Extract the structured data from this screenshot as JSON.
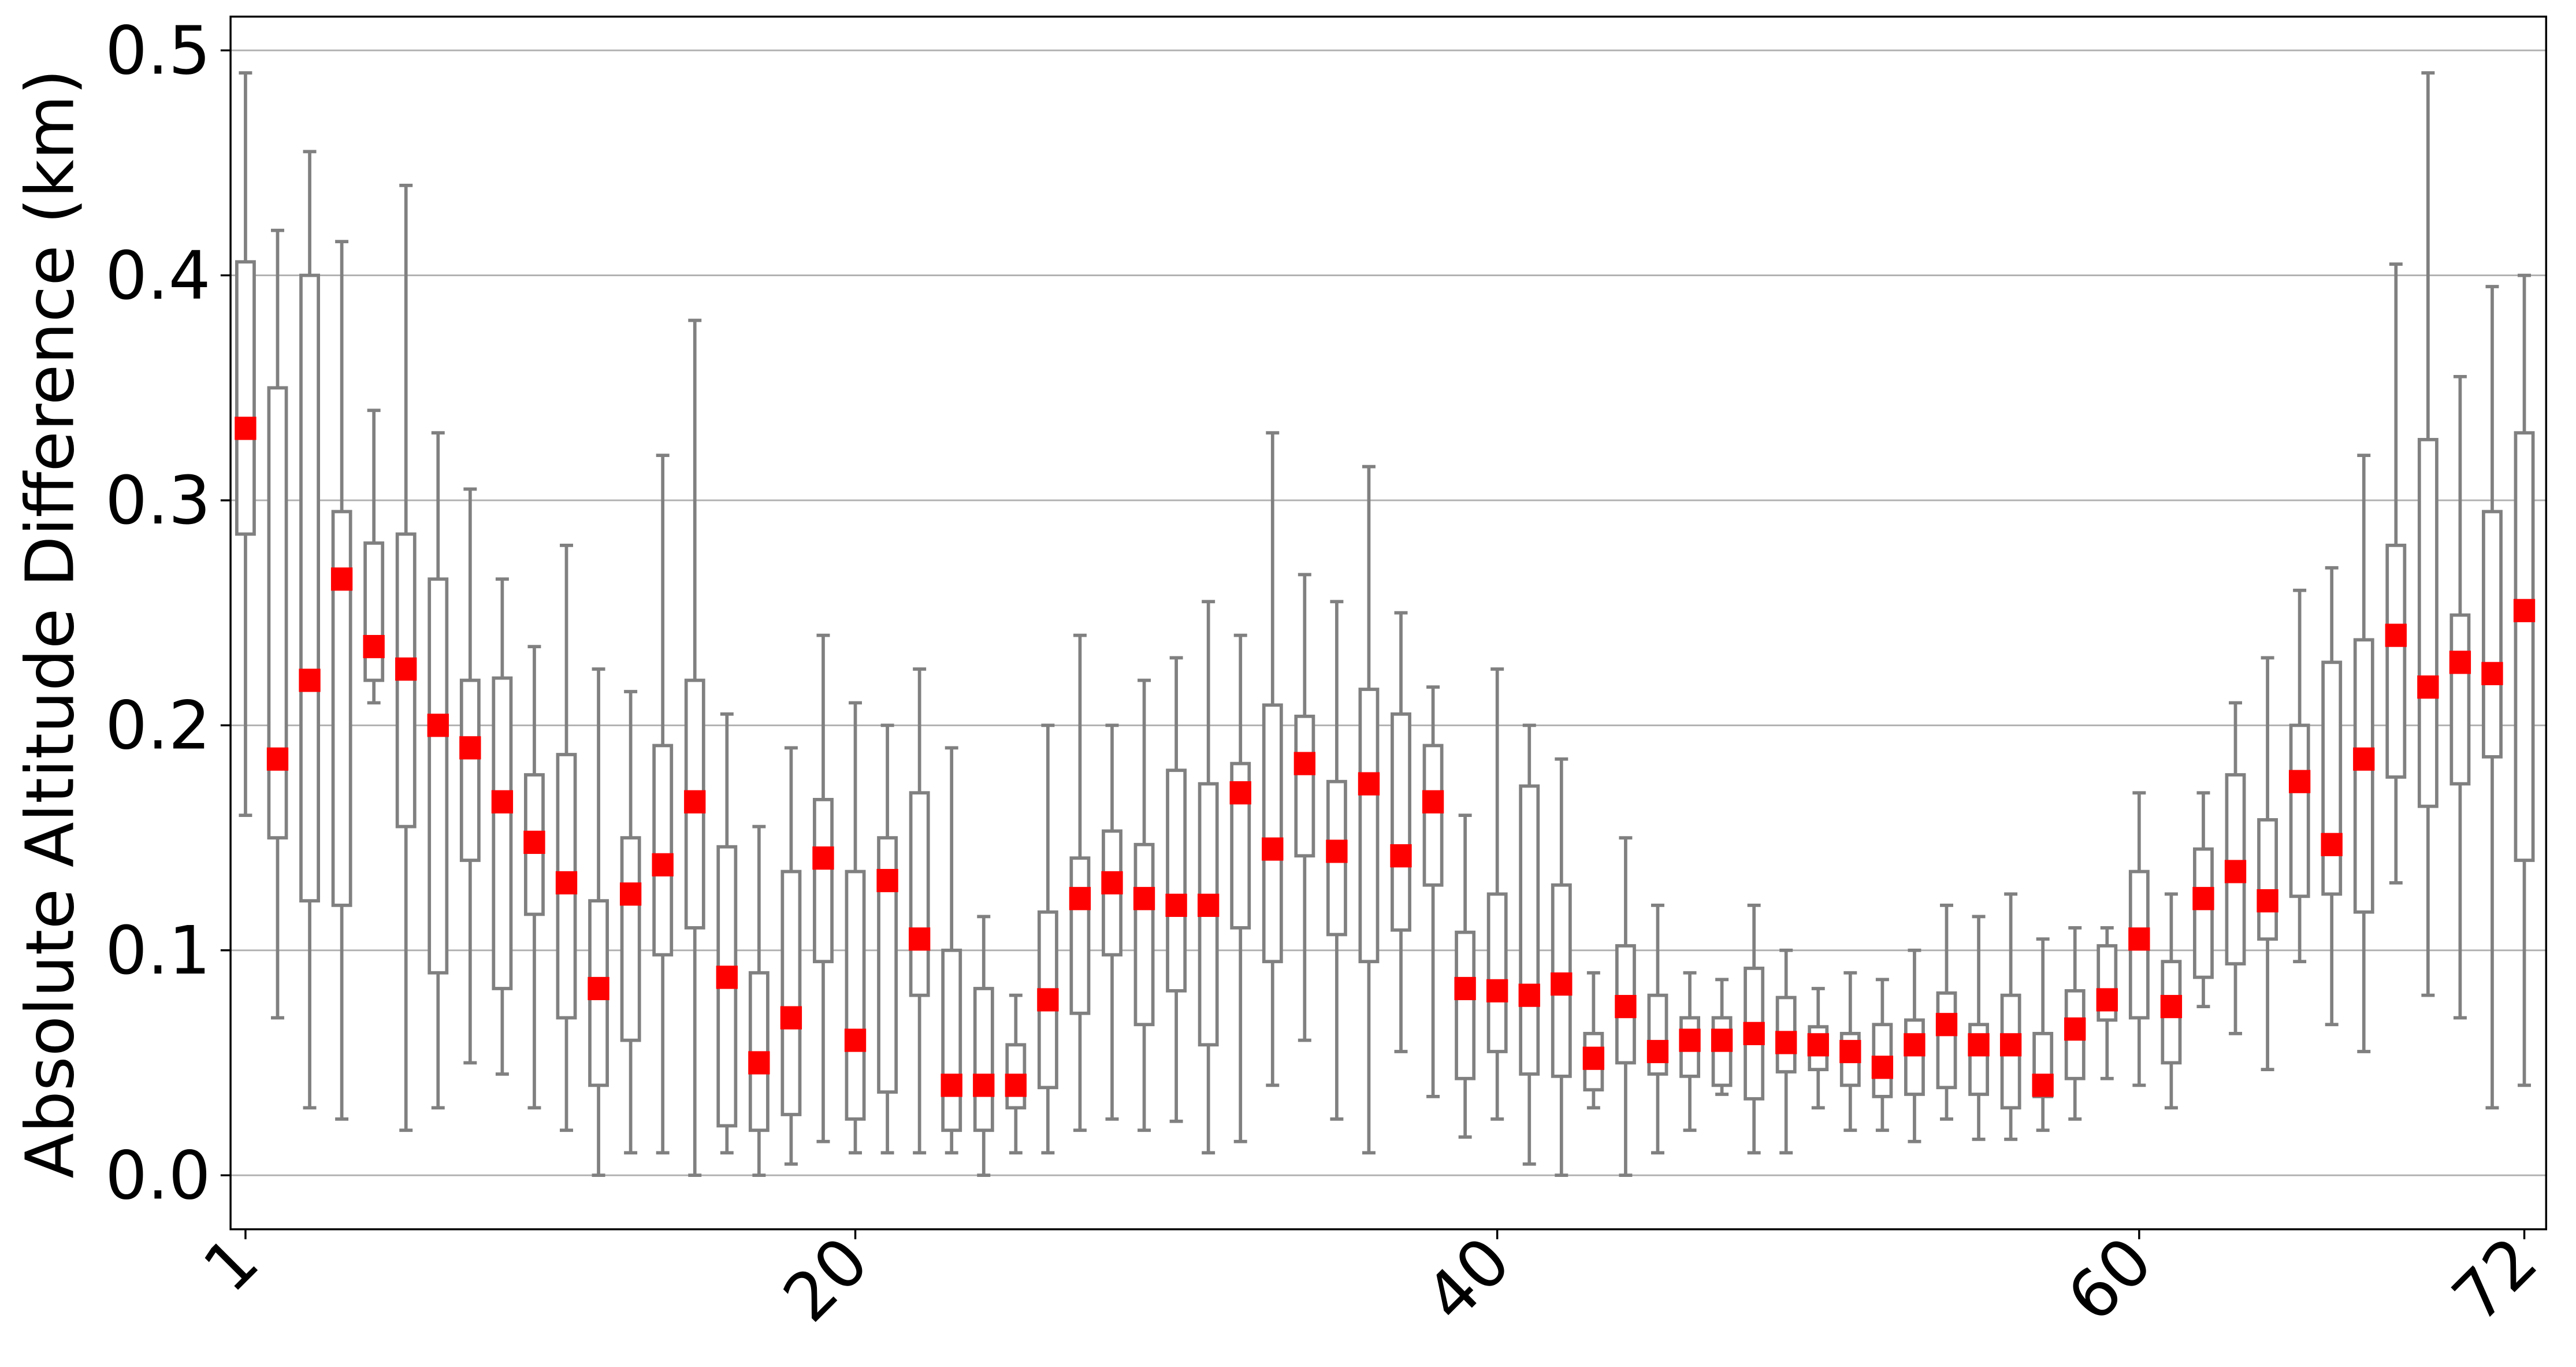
{
  "chart_data": {
    "type": "box",
    "ylabel": "Absolute Altitude Difference (km)",
    "x": [
      1,
      2,
      3,
      4,
      5,
      6,
      7,
      8,
      9,
      10,
      11,
      12,
      13,
      14,
      15,
      16,
      17,
      18,
      19,
      20,
      21,
      22,
      23,
      24,
      25,
      26,
      27,
      28,
      29,
      30,
      31,
      32,
      33,
      34,
      35,
      36,
      37,
      38,
      39,
      40,
      41,
      42,
      43,
      44,
      45,
      46,
      47,
      48,
      49,
      50,
      51,
      52,
      53,
      54,
      55,
      56,
      57,
      58,
      59,
      60,
      61,
      62,
      63,
      64,
      65,
      66,
      67,
      68,
      69,
      70,
      71,
      72
    ],
    "whishi": [
      0.49,
      0.42,
      0.455,
      0.415,
      0.34,
      0.44,
      0.33,
      0.305,
      0.265,
      0.235,
      0.28,
      0.225,
      0.215,
      0.32,
      0.38,
      0.205,
      0.155,
      0.19,
      0.24,
      0.21,
      0.2,
      0.225,
      0.19,
      0.115,
      0.08,
      0.2,
      0.24,
      0.2,
      0.22,
      0.23,
      0.255,
      0.24,
      0.33,
      0.267,
      0.255,
      0.315,
      0.25,
      0.217,
      0.16,
      0.225,
      0.2,
      0.185,
      0.09,
      0.15,
      0.12,
      0.09,
      0.087,
      0.12,
      0.1,
      0.083,
      0.09,
      0.087,
      0.1,
      0.12,
      0.115,
      0.125,
      0.105,
      0.11,
      0.11,
      0.17,
      0.125,
      0.17,
      0.21,
      0.23,
      0.26,
      0.27,
      0.32,
      0.405,
      0.49,
      0.355,
      0.395,
      0.4
    ],
    "q3": [
      0.406,
      0.35,
      0.4,
      0.295,
      0.281,
      0.285,
      0.265,
      0.22,
      0.221,
      0.178,
      0.187,
      0.122,
      0.15,
      0.191,
      0.22,
      0.146,
      0.09,
      0.135,
      0.167,
      0.135,
      0.15,
      0.17,
      0.1,
      0.083,
      0.058,
      0.117,
      0.141,
      0.153,
      0.147,
      0.18,
      0.174,
      0.183,
      0.209,
      0.204,
      0.175,
      0.216,
      0.205,
      0.191,
      0.108,
      0.125,
      0.173,
      0.129,
      0.063,
      0.102,
      0.08,
      0.07,
      0.07,
      0.092,
      0.079,
      0.066,
      0.063,
      0.067,
      0.069,
      0.081,
      0.067,
      0.08,
      0.063,
      0.082,
      0.102,
      0.135,
      0.095,
      0.145,
      0.178,
      0.158,
      0.2,
      0.228,
      0.238,
      0.28,
      0.327,
      0.249,
      0.295,
      0.33
    ],
    "med": [
      0.332,
      0.185,
      0.22,
      0.265,
      0.235,
      0.225,
      0.2,
      0.19,
      0.166,
      0.148,
      0.13,
      0.083,
      0.125,
      0.138,
      0.166,
      0.088,
      0.05,
      0.07,
      0.141,
      0.06,
      0.131,
      0.105,
      0.04,
      0.04,
      0.04,
      0.078,
      0.123,
      0.13,
      0.123,
      0.12,
      0.12,
      0.17,
      0.145,
      0.183,
      0.144,
      0.174,
      0.142,
      0.166,
      0.083,
      0.082,
      0.08,
      0.085,
      0.052,
      0.075,
      0.055,
      0.06,
      0.06,
      0.063,
      0.059,
      0.058,
      0.055,
      0.048,
      0.058,
      0.067,
      0.058,
      0.058,
      0.04,
      0.065,
      0.078,
      0.105,
      0.075,
      0.123,
      0.135,
      0.122,
      0.175,
      0.147,
      0.185,
      0.24,
      0.217,
      0.228,
      0.223,
      0.251
    ],
    "q1": [
      0.285,
      0.15,
      0.122,
      0.12,
      0.22,
      0.155,
      0.09,
      0.14,
      0.083,
      0.116,
      0.07,
      0.04,
      0.06,
      0.098,
      0.11,
      0.022,
      0.02,
      0.027,
      0.095,
      0.025,
      0.037,
      0.08,
      0.02,
      0.02,
      0.03,
      0.039,
      0.072,
      0.098,
      0.067,
      0.082,
      0.058,
      0.11,
      0.095,
      0.142,
      0.107,
      0.095,
      0.109,
      0.129,
      0.043,
      0.055,
      0.045,
      0.044,
      0.038,
      0.05,
      0.045,
      0.044,
      0.04,
      0.034,
      0.046,
      0.047,
      0.04,
      0.035,
      0.036,
      0.039,
      0.036,
      0.03,
      0.035,
      0.043,
      0.069,
      0.07,
      0.05,
      0.088,
      0.094,
      0.105,
      0.124,
      0.125,
      0.117,
      0.177,
      0.164,
      0.174,
      0.186,
      0.14
    ],
    "whislo": [
      0.16,
      0.07,
      0.03,
      0.025,
      0.21,
      0.02,
      0.03,
      0.05,
      0.045,
      0.03,
      0.02,
      0.0,
      0.01,
      0.01,
      0.0,
      0.01,
      0.0,
      0.005,
      0.015,
      0.01,
      0.01,
      0.01,
      0.01,
      0.0,
      0.01,
      0.01,
      0.02,
      0.025,
      0.02,
      0.024,
      0.01,
      0.015,
      0.04,
      0.06,
      0.025,
      0.01,
      0.055,
      0.035,
      0.017,
      0.025,
      0.005,
      0.0,
      0.03,
      0.0,
      0.01,
      0.02,
      0.036,
      0.01,
      0.01,
      0.03,
      0.02,
      0.02,
      0.015,
      0.025,
      0.016,
      0.016,
      0.02,
      0.025,
      0.043,
      0.04,
      0.03,
      0.075,
      0.063,
      0.047,
      0.095,
      0.067,
      0.055,
      0.13,
      0.08,
      0.07,
      0.03,
      0.04
    ],
    "box_color": "#808080",
    "median_color": "#ff0000",
    "xlim": [
      0.535,
      72.68
    ],
    "xticks": [
      1,
      20,
      40,
      60,
      72
    ],
    "ylim": [
      -0.024,
      0.515
    ],
    "yticks": [
      {
        "value": 0,
        "label": "0.0"
      },
      0.1,
      0.2,
      0.3,
      0.4,
      0.5
    ],
    "grid": "y"
  }
}
